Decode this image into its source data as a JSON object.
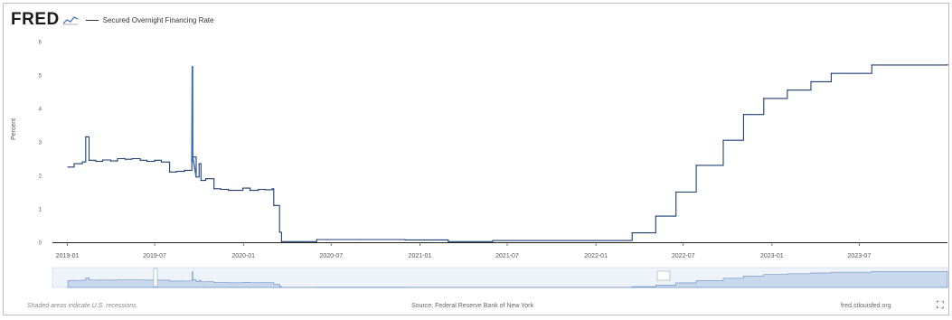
{
  "header": {
    "logo_text": "FRED",
    "legend_label": "Secured Overnight Financing Rate"
  },
  "footer": {
    "recession_note": "Shaded areas indicate U.S. recessions.",
    "source": "Source: Federal Reserve Bank of New York",
    "site": "fred.stlouisfed.org"
  },
  "colors": {
    "line": "#1f3f73",
    "spike": "#3b6fc4",
    "zoom_fill": "#c9d8ec",
    "zoom_line": "#6f94c7"
  },
  "chart_data": {
    "type": "line",
    "ylabel": "Percent",
    "xlabel": "",
    "ylim": [
      0,
      6
    ],
    "yticks": [
      0,
      1,
      2,
      3,
      4,
      5,
      6
    ],
    "xlim": [
      "2018-12-01",
      "2023-12-31"
    ],
    "xticks": [
      "2019-01",
      "2019-07",
      "2020-01",
      "2020-07",
      "2021-01",
      "2021-07",
      "2022-01",
      "2022-07",
      "2023-01",
      "2023-07"
    ],
    "grid": false,
    "series": [
      {
        "name": "Secured Overnight Financing Rate",
        "points": [
          [
            "2019-01-02",
            2.25
          ],
          [
            "2019-01-15",
            2.35
          ],
          [
            "2019-02-01",
            2.4
          ],
          [
            "2019-02-08",
            3.15
          ],
          [
            "2019-02-15",
            2.45
          ],
          [
            "2019-03-01",
            2.42
          ],
          [
            "2019-03-15",
            2.46
          ],
          [
            "2019-04-01",
            2.43
          ],
          [
            "2019-04-15",
            2.5
          ],
          [
            "2019-05-01",
            2.48
          ],
          [
            "2019-05-15",
            2.5
          ],
          [
            "2019-06-01",
            2.45
          ],
          [
            "2019-06-15",
            2.42
          ],
          [
            "2019-07-01",
            2.45
          ],
          [
            "2019-07-15",
            2.4
          ],
          [
            "2019-08-01",
            2.1
          ],
          [
            "2019-08-15",
            2.12
          ],
          [
            "2019-09-01",
            2.15
          ],
          [
            "2019-09-16",
            2.43
          ],
          [
            "2019-09-17",
            5.25
          ],
          [
            "2019-09-18",
            2.55
          ],
          [
            "2019-09-25",
            1.95
          ],
          [
            "2019-10-01",
            2.35
          ],
          [
            "2019-10-05",
            1.85
          ],
          [
            "2019-10-15",
            1.9
          ],
          [
            "2019-11-01",
            1.6
          ],
          [
            "2019-11-15",
            1.58
          ],
          [
            "2019-12-01",
            1.55
          ],
          [
            "2019-12-31",
            1.62
          ],
          [
            "2020-01-15",
            1.55
          ],
          [
            "2020-02-01",
            1.58
          ],
          [
            "2020-02-15",
            1.57
          ],
          [
            "2020-03-01",
            1.6
          ],
          [
            "2020-03-04",
            1.1
          ],
          [
            "2020-03-16",
            0.3
          ],
          [
            "2020-03-20",
            0.02
          ],
          [
            "2020-06-01",
            0.08
          ],
          [
            "2020-09-01",
            0.08
          ],
          [
            "2020-12-01",
            0.07
          ],
          [
            "2021-03-01",
            0.02
          ],
          [
            "2021-06-01",
            0.05
          ],
          [
            "2021-09-01",
            0.05
          ],
          [
            "2021-12-01",
            0.05
          ],
          [
            "2022-03-17",
            0.28
          ],
          [
            "2022-05-05",
            0.78
          ],
          [
            "2022-06-16",
            1.5
          ],
          [
            "2022-07-28",
            2.3
          ],
          [
            "2022-09-22",
            3.05
          ],
          [
            "2022-11-03",
            3.82
          ],
          [
            "2022-12-15",
            4.3
          ],
          [
            "2023-02-02",
            4.55
          ],
          [
            "2023-03-23",
            4.8
          ],
          [
            "2023-05-04",
            5.05
          ],
          [
            "2023-07-27",
            5.3
          ],
          [
            "2023-12-31",
            5.31
          ]
        ]
      }
    ]
  }
}
